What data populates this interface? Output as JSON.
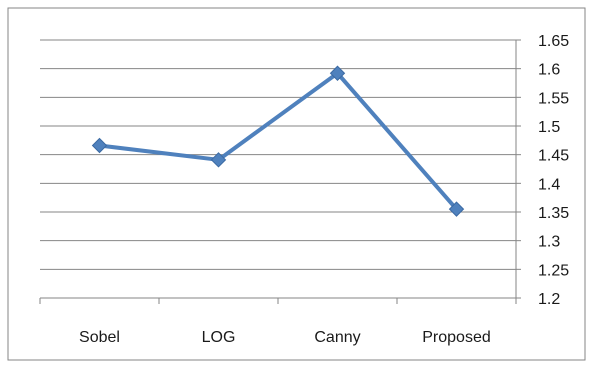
{
  "chart_data": {
    "type": "line",
    "categories": [
      "Sobel",
      "LOG",
      "Canny",
      "Proposed"
    ],
    "series": [
      {
        "values": [
          1.466,
          1.441,
          1.592,
          1.355
        ]
      }
    ],
    "yticks": [
      "1.2",
      "1.25",
      "1.3",
      "1.35",
      "1.4",
      "1.45",
      "1.5",
      "1.55",
      "1.6",
      "1.65"
    ],
    "ylim": [
      1.2,
      1.65
    ],
    "y_axis_side": "right",
    "grid": true,
    "legend": "none",
    "marker": "diamond",
    "colors": {
      "series": "#4F81BD",
      "marker_stroke": "#3B6AA3",
      "grid": "#868686",
      "axis": "#868686",
      "border": "#868686"
    }
  }
}
